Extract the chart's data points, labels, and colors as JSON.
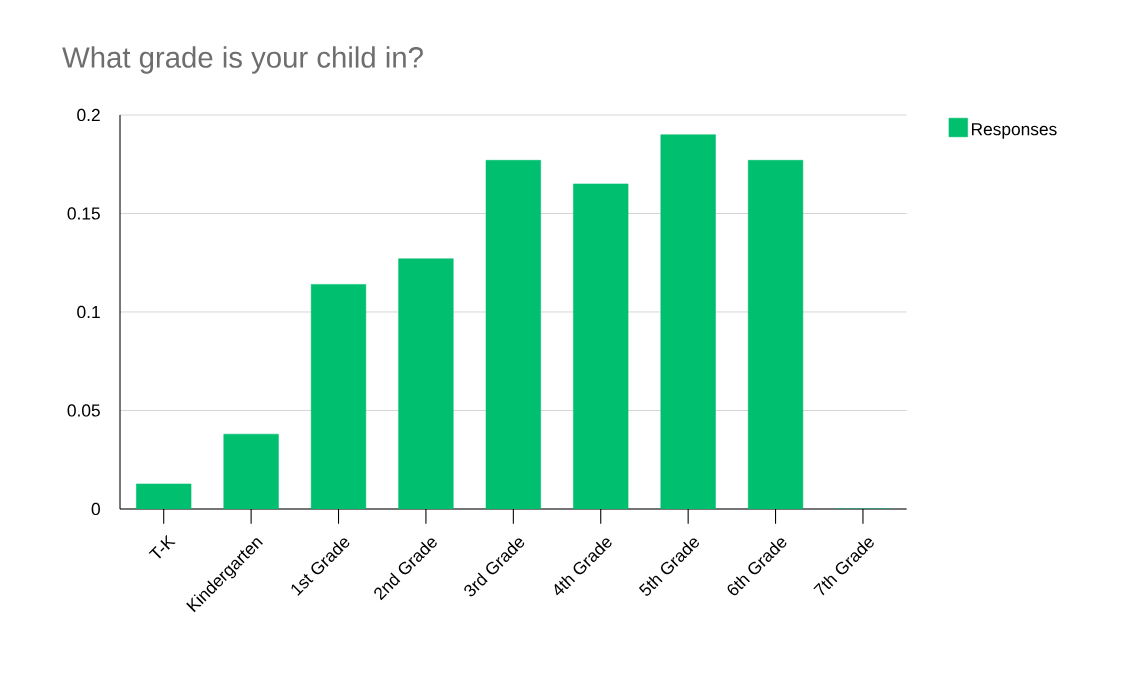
{
  "chart_data": {
    "type": "bar",
    "title": "What grade is your child in?",
    "categories": [
      "T-K",
      "Kindergarten",
      "1st Grade",
      "2nd Grade",
      "3rd Grade",
      "4th Grade",
      "5th Grade",
      "6th Grade",
      "7th Grade"
    ],
    "series": [
      {
        "name": "Responses",
        "color": "#00bf6f",
        "values": [
          0.0127,
          0.038,
          0.114,
          0.127,
          0.177,
          0.165,
          0.19,
          0.177,
          0
        ]
      }
    ],
    "ylim": [
      0,
      0.2
    ],
    "yticks": [
      0,
      0.05,
      0.1,
      0.15,
      0.2
    ],
    "grid": "y",
    "legend": "top right"
  }
}
